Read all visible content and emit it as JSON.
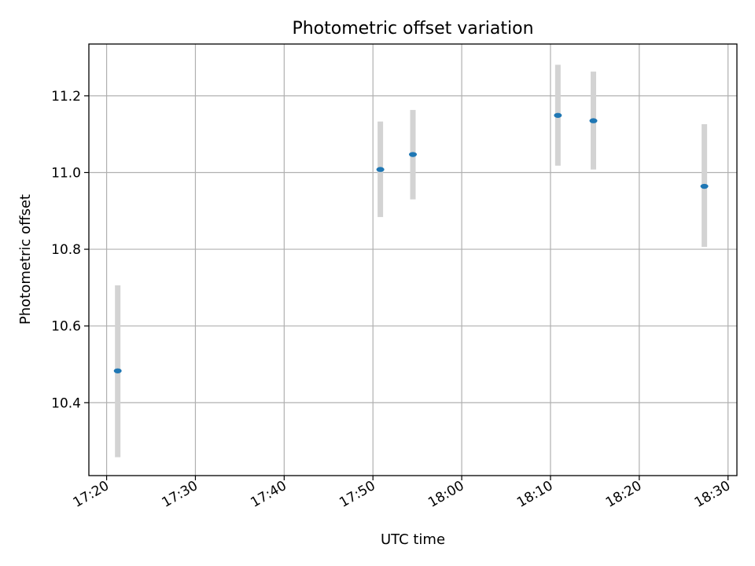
{
  "chart_data": {
    "type": "scatter",
    "title": "Photometric offset variation",
    "xlabel": "UTC time",
    "ylabel": "Photometric offset",
    "grid": true,
    "xlim": [
      "17:18",
      "18:31"
    ],
    "ylim": [
      10.21,
      11.335
    ],
    "x_ticks": [
      "17:20",
      "17:30",
      "17:40",
      "17:50",
      "18:00",
      "18:10",
      "18:20",
      "18:30"
    ],
    "y_ticks": [
      "10.4",
      "10.6",
      "10.8",
      "11.0",
      "11.2"
    ],
    "x": [
      "17:21:15",
      "17:50:50",
      "17:54:30",
      "18:10:50",
      "18:14:50",
      "18:27:20"
    ],
    "y": [
      10.483,
      11.008,
      11.047,
      11.149,
      11.135,
      10.964
    ],
    "yerr_low": [
      10.258,
      10.884,
      10.93,
      11.018,
      11.008,
      10.806
    ],
    "yerr_high": [
      10.706,
      11.133,
      11.163,
      11.281,
      11.263,
      11.126
    ],
    "colors": {
      "point": "#1f77b4",
      "errorbar": "#d3d3d3"
    }
  }
}
